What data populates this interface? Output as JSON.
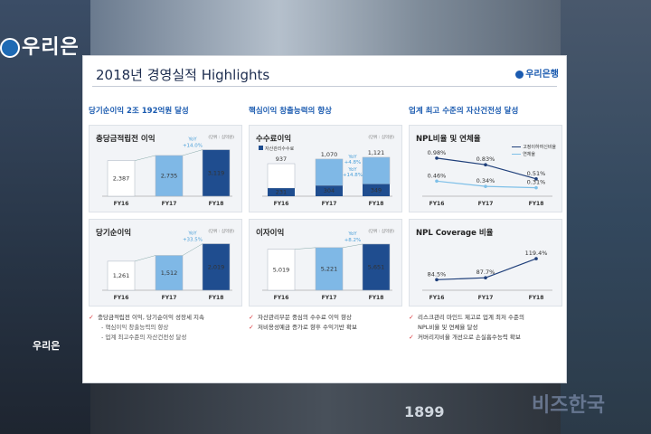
{
  "background": {
    "sign_left": "우리은",
    "sign_left_small": "우리은",
    "sign_num": "1899",
    "watermark": "비즈한국"
  },
  "slide": {
    "title": "2018년  경영실적 Highlights",
    "logo": "우리은행"
  },
  "columns": [
    {
      "header": "당기순이익 2조 192억원 달성",
      "panels": [
        {
          "title": "충당금적립전 이익",
          "unit": "(단위 : 십억원)",
          "yoy": [
            "YoY",
            "+14.0%"
          ]
        },
        {
          "title": "당기순이익",
          "unit": "(단위 : 십억원)",
          "yoy": [
            "YoY",
            "+33.5%"
          ]
        }
      ],
      "bullets": [
        {
          "text": "충당금적립전 이익, 당기순이익 성장세 지속",
          "check": true
        },
        {
          "text": "- 핵심이익 창출능력의 향상",
          "check": false
        },
        {
          "text": "- 업계 최고수준의 자산건전성 달성",
          "check": false
        }
      ]
    },
    {
      "header": "핵심이익 창출능력의 향상",
      "panels": [
        {
          "title": "수수료이익",
          "unit": "(단위 : 십억원)",
          "legend": "자산관리수수료",
          "yoy": [
            "YoY",
            "+4.8%"
          ],
          "yoy2": [
            "YoY",
            "+14.8%"
          ]
        },
        {
          "title": "이자이익",
          "unit": "(단위 : 십억원)",
          "yoy": [
            "YoY",
            "+8.2%"
          ]
        }
      ],
      "bullets": [
        {
          "text": "자산관리부문 중심의 수수료 이익 향상",
          "check": true
        },
        {
          "text": "저비용성예금 증가로 향후 수익기반 확보",
          "check": true
        }
      ]
    },
    {
      "header": "업계 최고 수준의 자산건전성 달성",
      "panels": [
        {
          "title": "NPL비율 및 연체율",
          "legend": [
            "고정이하여신비율",
            "연체율"
          ]
        },
        {
          "title": "NPL Coverage 비율"
        }
      ],
      "bullets": [
        {
          "text": "리스크관리 마인드 제고로 업계 최저 수준의",
          "check": true
        },
        {
          "text": "NPL비율 및 연체율 달성",
          "check": false
        },
        {
          "text": "커버리지비율 개선으로 손실흡수능력 확보",
          "check": true
        }
      ]
    }
  ],
  "chart_data": [
    {
      "type": "bar",
      "title": "충당금적립전 이익",
      "categories": [
        "FY16",
        "FY17",
        "FY18"
      ],
      "values": [
        2387,
        2735,
        3119
      ],
      "ylim": [
        0,
        3400
      ]
    },
    {
      "type": "bar",
      "title": "당기순이익",
      "categories": [
        "FY16",
        "FY17",
        "FY18"
      ],
      "values": [
        1261,
        1512,
        2019
      ],
      "ylim": [
        0,
        2200
      ]
    },
    {
      "type": "bar",
      "title": "수수료이익",
      "categories": [
        "FY16",
        "FY17",
        "FY18"
      ],
      "series": [
        {
          "name": "자산관리수수료",
          "values": [
            231,
            304,
            349
          ]
        },
        {
          "values": [
            937,
            1070,
            1121
          ]
        }
      ],
      "ylim": [
        0,
        1250
      ]
    },
    {
      "type": "bar",
      "title": "이자이익",
      "categories": [
        "FY16",
        "FY17",
        "FY18"
      ],
      "values": [
        5019,
        5221,
        5651
      ],
      "ylim": [
        0,
        6200
      ]
    },
    {
      "type": "line",
      "title": "NPL비율 및 연체율",
      "categories": [
        "FY16",
        "FY17",
        "FY18"
      ],
      "series": [
        {
          "name": "고정이하여신비율",
          "values": [
            0.98,
            0.83,
            0.51
          ],
          "labels": [
            "0.98%",
            "0.83%",
            "0.51%"
          ]
        },
        {
          "name": "연체율",
          "values": [
            0.46,
            0.34,
            0.31
          ],
          "labels": [
            "0.46%",
            "0.34%",
            "0.31%"
          ]
        }
      ],
      "ylim": [
        0.2,
        1.1
      ]
    },
    {
      "type": "line",
      "title": "NPL Coverage 비율",
      "categories": [
        "FY16",
        "FY17",
        "FY18"
      ],
      "series": [
        {
          "values": [
            84.5,
            87.7,
            119.4
          ],
          "labels": [
            "84.5%",
            "87.7%",
            "119.4%"
          ]
        }
      ],
      "ylim": [
        70,
        130
      ]
    }
  ],
  "colors": {
    "bar_dark": "#1f4d8f",
    "bar_light": "#7fb8e6",
    "bar_white": "#ffffff",
    "accent": "#1b5bb0",
    "line_light": "#7fc0e8"
  }
}
